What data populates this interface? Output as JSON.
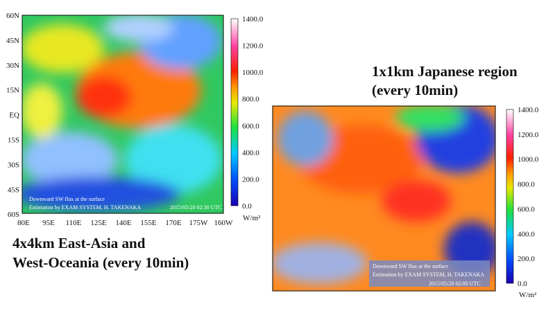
{
  "left_map": {
    "lat_labels": [
      "60N",
      "45N",
      "30N",
      "15N",
      "EQ",
      "15S",
      "30S",
      "45S",
      "60S"
    ],
    "lon_labels": [
      "80E",
      "95E",
      "110E",
      "125E",
      "140E",
      "155E",
      "170E",
      "175W",
      "160W"
    ],
    "colorbar_labels": [
      "1400.0",
      "1200.0",
      "1000.0",
      "800.0",
      "600.0",
      "400.0",
      "200.0",
      "0.0"
    ],
    "unit": "W/m²",
    "annotation_lines": [
      "Downward SW flux at the surface",
      "Estimation by EXAM SYSTEM,  H. TAKENAKA"
    ],
    "timestamp": "2015/05/20 02:30 UTC",
    "caption_lines": [
      "4x4km East-Asia and",
      "West-Oceania (every 10min)"
    ]
  },
  "right_map": {
    "title_lines": [
      "1x1km Japanese region",
      "(every 10min)"
    ],
    "colorbar_labels": [
      "1400.0",
      "1200.0",
      "1000.0",
      "800.0",
      "600.0",
      "400.0",
      "200.0",
      "0.0"
    ],
    "unit": "W/m²",
    "annotation_lines": [
      "Downward SW flux at the surface",
      "Estimation by EXAM SYSTEM,  H. TAKENAKA"
    ],
    "timestamp": "2015/05/20 02:00 UTC"
  }
}
